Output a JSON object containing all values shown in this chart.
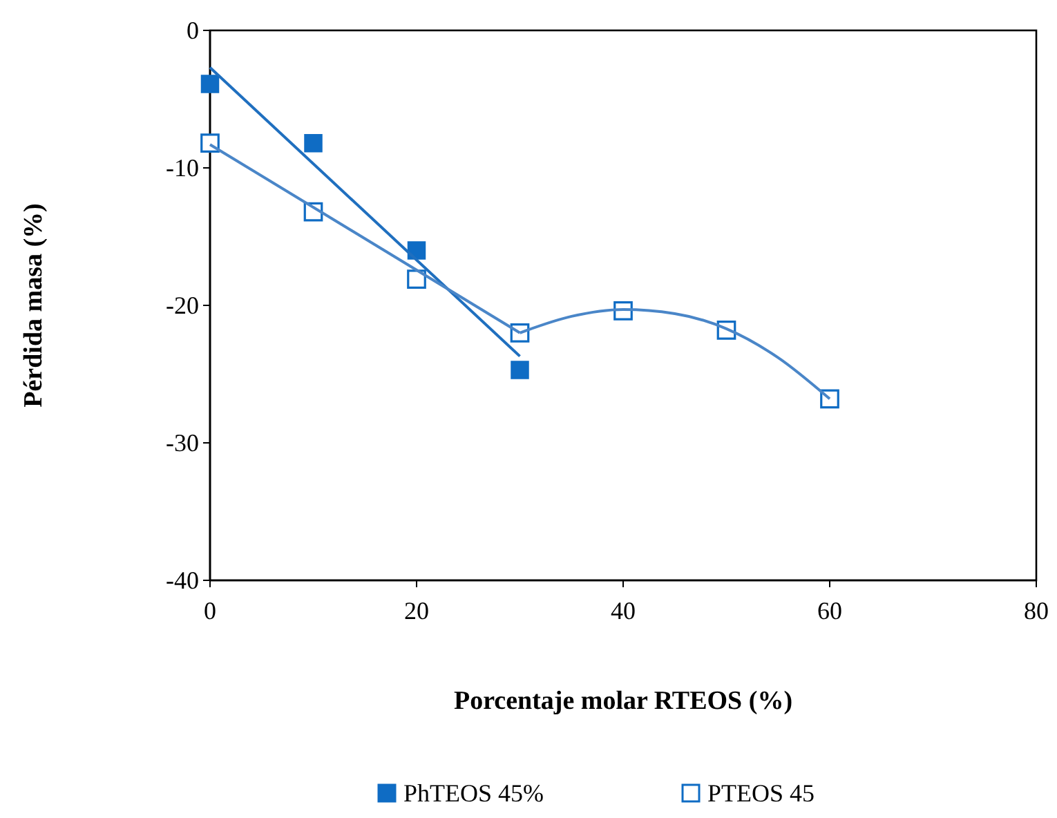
{
  "chart_data": {
    "type": "scatter",
    "xlabel": "Porcentaje molar RTEOS (%)",
    "ylabel": "Pérdida masa  (%)",
    "xlim": [
      0,
      80
    ],
    "xticks": [
      0,
      20,
      40,
      60,
      80
    ],
    "ylim": [
      -40,
      0
    ],
    "yticks": [
      -40,
      -30,
      -20,
      -10,
      0
    ],
    "grid": false,
    "legend": "bottom",
    "series": [
      {
        "name": "PhTEOS 45%",
        "marker": "square",
        "color": "#0f6cc4",
        "x": [
          0,
          10,
          20,
          30
        ],
        "values": [
          -3.9,
          -8.2,
          -16.0,
          -24.7
        ]
      },
      {
        "name": "PTEOS 45",
        "marker": "square",
        "color": "#0f6cc4",
        "x": [
          0,
          10,
          20,
          30,
          40,
          50,
          60
        ],
        "values": [
          -8.2,
          -13.2,
          -18.1,
          -22.0,
          -20.4,
          -21.8,
          -26.8
        ]
      },
      {
        "type": "line",
        "color": "#1f6fbf",
        "x": [
          0,
          30
        ],
        "values": [
          -2.7,
          -23.7
        ]
      },
      {
        "type": "line",
        "color": "#4a86c8",
        "x": [
          0,
          30
        ],
        "values": [
          -8.3,
          -22.0
        ]
      },
      {
        "type": "line",
        "color": "#4a86c8",
        "x": [
          30,
          35,
          40,
          45,
          50,
          55,
          60
        ],
        "values": [
          -22.0,
          -20.8,
          -20.3,
          -20.6,
          -21.7,
          -23.8,
          -26.8
        ]
      }
    ]
  }
}
